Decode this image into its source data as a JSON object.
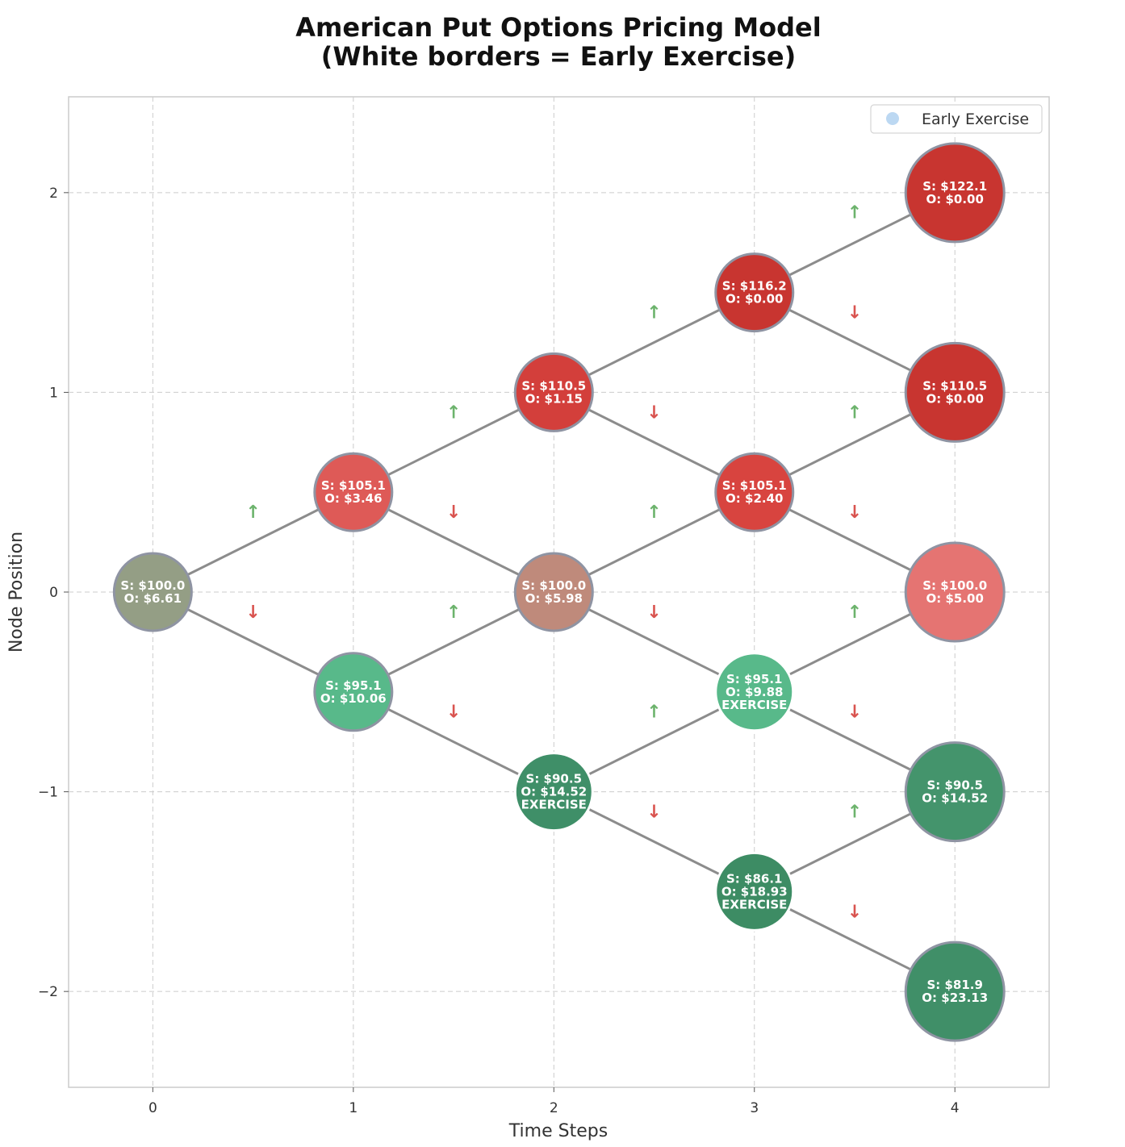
{
  "chart_data": {
    "type": "scatter",
    "title_lines": [
      "American Put Options Pricing Model",
      "(White borders = Early Exercise)"
    ],
    "xlabel": "Time Steps",
    "ylabel": "Node Position",
    "xlim": [
      -0.42,
      4.47
    ],
    "ylim": [
      -2.48,
      2.48
    ],
    "x_ticks": [
      0,
      1,
      2,
      3,
      4
    ],
    "x_tick_labels": [
      "0",
      "1",
      "2",
      "3",
      "4"
    ],
    "y_ticks": [
      -2,
      -1,
      0,
      1,
      2
    ],
    "y_tick_labels": [
      "−2",
      "−1",
      "0",
      "1",
      "2"
    ],
    "grid": true,
    "legend": {
      "position": "top-right",
      "label": "Early Exercise",
      "marker_color": "#bcd8f2"
    },
    "colors": {
      "edge": "#8c8c8c",
      "node_border": "#8f94a3",
      "up_arrow": "#6cb36c",
      "down_arrow": "#d9534f"
    },
    "up_symbol": "↑",
    "down_symbol": "↓",
    "nodes": [
      {
        "t": 0,
        "pos": 0,
        "S": "S: $100.0",
        "O": "O: $6.61",
        "color": "#949e85",
        "exercise": false
      },
      {
        "t": 1,
        "pos": 0.5,
        "S": "S: $105.1",
        "O": "O: $3.46",
        "color": "#de5a57",
        "exercise": false
      },
      {
        "t": 1,
        "pos": -0.5,
        "S": "S: $95.1",
        "O": "O: $10.06",
        "color": "#58b98a",
        "exercise": false
      },
      {
        "t": 2,
        "pos": 1,
        "S": "S: $110.5",
        "O": "O: $1.15",
        "color": "#d33f3b",
        "exercise": false
      },
      {
        "t": 2,
        "pos": 0,
        "S": "S: $100.0",
        "O": "O: $5.98",
        "color": "#bf8a7b",
        "exercise": false
      },
      {
        "t": 2,
        "pos": -1,
        "S": "S: $90.5",
        "O": "O: $14.52",
        "color": "#3f8f68",
        "exercise": true,
        "exercise_label": "EXERCISE"
      },
      {
        "t": 3,
        "pos": 1.5,
        "S": "S: $116.2",
        "O": "O: $0.00",
        "color": "#c83530",
        "exercise": false
      },
      {
        "t": 3,
        "pos": 0.5,
        "S": "S: $105.1",
        "O": "O: $2.40",
        "color": "#d8443f",
        "exercise": false
      },
      {
        "t": 3,
        "pos": -0.5,
        "S": "S: $95.1",
        "O": "O: $9.88",
        "color": "#58b98a",
        "exercise": true,
        "exercise_label": "EXERCISE"
      },
      {
        "t": 3,
        "pos": -1.5,
        "S": "S: $86.1",
        "O": "O: $18.93",
        "color": "#3d8c64",
        "exercise": true,
        "exercise_label": "EXERCISE"
      },
      {
        "t": 4,
        "pos": 2,
        "S": "S: $122.1",
        "O": "O: $0.00",
        "color": "#c83530",
        "exercise": false
      },
      {
        "t": 4,
        "pos": 1,
        "S": "S: $110.5",
        "O": "O: $0.00",
        "color": "#c83530",
        "exercise": false
      },
      {
        "t": 4,
        "pos": 0,
        "S": "S: $100.0",
        "O": "O: $5.00",
        "color": "#e57472",
        "exercise": false
      },
      {
        "t": 4,
        "pos": -1,
        "S": "S: $90.5",
        "O": "O: $14.52",
        "color": "#44946c",
        "exercise": false
      },
      {
        "t": 4,
        "pos": -2,
        "S": "S: $81.9",
        "O": "O: $23.13",
        "color": "#408f68",
        "exercise": false
      }
    ]
  }
}
